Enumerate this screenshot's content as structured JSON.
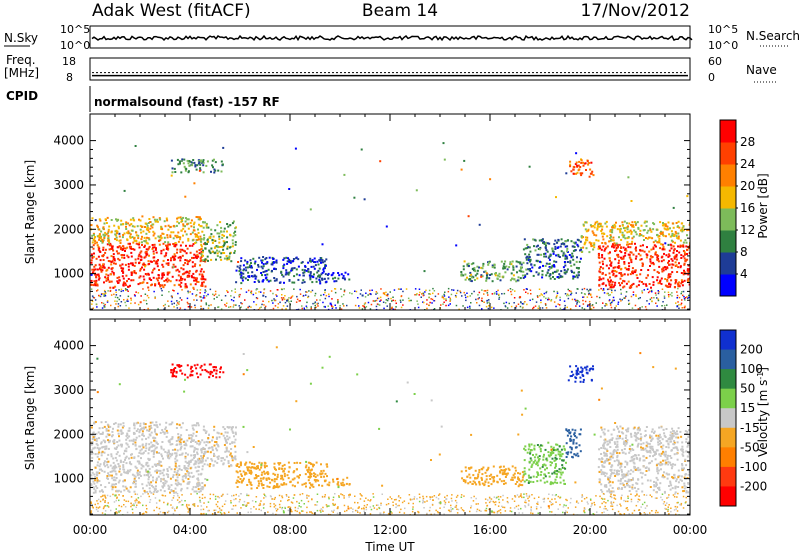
{
  "header": {
    "radar": "Adak West (fitACF)",
    "beam": "Beam 14",
    "date": "17/Nov/2012"
  },
  "noise_panel": {
    "left_label": "N.Sky",
    "right_label": "N.Search",
    "left_ticks": [
      "10^5",
      "10^0"
    ],
    "right_ticks": [
      "10^5",
      "10^0"
    ]
  },
  "freq_panel": {
    "left_label_1": "Freq.",
    "left_label_2": "[MHz]",
    "right_label": "Nave",
    "left_ticks": [
      "18",
      "8"
    ],
    "right_ticks": [
      "60",
      "0"
    ],
    "freq_mhz": 10,
    "nave": 20
  },
  "cpid": {
    "label": "CPID",
    "text": "normalsound (fast) -157 RF"
  },
  "chart_data": [
    {
      "type": "heatmap",
      "name": "power",
      "ylabel": "Slant Range [km]",
      "xlabel": "",
      "ylim": [
        180,
        4600
      ],
      "yticks": [
        "4000",
        "3000",
        "2000",
        "1000"
      ],
      "x_tick_labels": [
        "00:00",
        "04:00",
        "08:00",
        "12:00",
        "16:00",
        "20:00",
        "00:00"
      ],
      "colorbar": {
        "label": "Power [dB]",
        "ticks": [
          "28",
          "24",
          "20",
          "16",
          "12",
          "8",
          "4"
        ],
        "colors": [
          "#0000ff",
          "#1e3c96",
          "#2f8040",
          "#7dbb5a",
          "#f5b800",
          "#ff8000",
          "#ff4000",
          "#ff0000"
        ]
      },
      "regions": [
        {
          "t": [
            0.0,
            4.6
          ],
          "r": [
            700,
            1700
          ],
          "value": 28
        },
        {
          "t": [
            0.0,
            4.4
          ],
          "r": [
            1700,
            2300
          ],
          "value": 18
        },
        {
          "t": [
            4.4,
            5.8
          ],
          "r": [
            1300,
            2200
          ],
          "value": 14
        },
        {
          "t": [
            5.8,
            9.5
          ],
          "r": [
            800,
            1400
          ],
          "value": 6
        },
        {
          "t": [
            9.5,
            10.4
          ],
          "r": [
            850,
            1050
          ],
          "value": 5
        },
        {
          "t": [
            14.8,
            17.3
          ],
          "r": [
            850,
            1300
          ],
          "value": 12
        },
        {
          "t": [
            17.3,
            19.6
          ],
          "r": [
            900,
            1800
          ],
          "value": 8
        },
        {
          "t": [
            19.6,
            20.3
          ],
          "r": [
            1500,
            2200
          ],
          "value": 18
        },
        {
          "t": [
            20.3,
            24.0
          ],
          "r": [
            700,
            1700
          ],
          "value": 28
        },
        {
          "t": [
            20.3,
            24.0
          ],
          "r": [
            1700,
            2200
          ],
          "value": 18
        },
        {
          "t": [
            3.2,
            5.3
          ],
          "r": [
            3300,
            3600
          ],
          "value": 10
        },
        {
          "t": [
            19.1,
            20.1
          ],
          "r": [
            3200,
            3600
          ],
          "value": 24
        }
      ]
    },
    {
      "type": "heatmap",
      "name": "velocity",
      "ylabel": "Slant Range [km]",
      "xlabel": "Time UT",
      "ylim": [
        180,
        4600
      ],
      "yticks": [
        "4000",
        "3000",
        "2000",
        "1000"
      ],
      "x_tick_labels": [
        "00:00",
        "04:00",
        "08:00",
        "12:00",
        "16:00",
        "20:00",
        "00:00"
      ],
      "colorbar": {
        "label": "Velocity [m s",
        "label_sup": "-1",
        "label_end": "]",
        "ticks": [
          "200",
          "100",
          "50",
          "15",
          "-15",
          "-50",
          "-100",
          "-200"
        ],
        "colors": [
          "#1030d0",
          "#2a5fa0",
          "#2f8a40",
          "#7cd04a",
          "#c8c8c8",
          "#f5a623",
          "#ff7f00",
          "#ff3a10",
          "#ff0000"
        ]
      },
      "regions": [
        {
          "t": [
            0.0,
            4.6
          ],
          "r": [
            700,
            1700
          ],
          "value": 0
        },
        {
          "t": [
            0.0,
            4.4
          ],
          "r": [
            1700,
            2300
          ],
          "value": 0
        },
        {
          "t": [
            4.4,
            5.8
          ],
          "r": [
            1300,
            2200
          ],
          "value": 0
        },
        {
          "t": [
            5.8,
            9.5
          ],
          "r": [
            800,
            1400
          ],
          "value": -30
        },
        {
          "t": [
            9.5,
            10.4
          ],
          "r": [
            850,
            1050
          ],
          "value": -30
        },
        {
          "t": [
            14.8,
            17.3
          ],
          "r": [
            850,
            1300
          ],
          "value": -30
        },
        {
          "t": [
            17.3,
            19.0
          ],
          "r": [
            900,
            1800
          ],
          "value": 40
        },
        {
          "t": [
            19.0,
            19.6
          ],
          "r": [
            1500,
            2200
          ],
          "value": 150
        },
        {
          "t": [
            20.3,
            24.0
          ],
          "r": [
            700,
            1700
          ],
          "value": 0
        },
        {
          "t": [
            20.3,
            24.0
          ],
          "r": [
            1700,
            2200
          ],
          "value": 0
        },
        {
          "t": [
            3.2,
            5.3
          ],
          "r": [
            3300,
            3600
          ],
          "value": -250
        },
        {
          "t": [
            19.1,
            20.1
          ],
          "r": [
            3200,
            3600
          ],
          "value": 250
        }
      ]
    }
  ]
}
